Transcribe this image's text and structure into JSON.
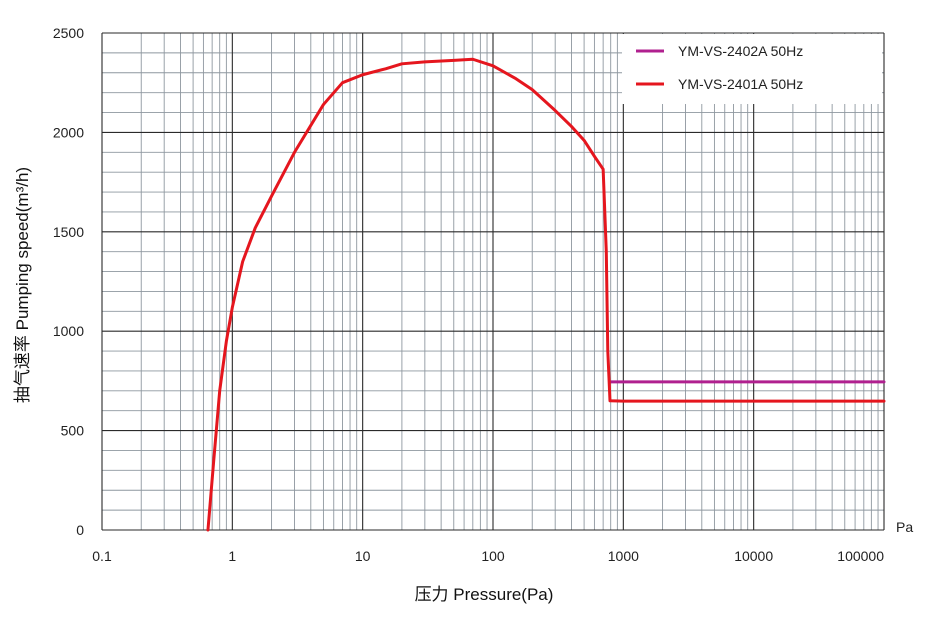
{
  "chart_data": {
    "type": "line",
    "xscale": "log",
    "xlim": [
      0.1,
      100000
    ],
    "ylim": [
      0,
      2500
    ],
    "grid": true,
    "xlabel": "压力 Pressure(Pa)",
    "ylabel": "抽气速率 Pumping speed(m³/h)",
    "x_unit": "Pa",
    "x_tick_labels": [
      "0.1",
      "1",
      "10",
      "100",
      "1000",
      "10000",
      "100000"
    ],
    "x_ticks": [
      0.1,
      1,
      10,
      100,
      1000,
      10000,
      100000
    ],
    "y_tick_labels": [
      "0",
      "500",
      "1000",
      "1500",
      "2000",
      "2500"
    ],
    "y_ticks": [
      0,
      500,
      1000,
      1500,
      2000,
      2500
    ],
    "legend_position": "top-right",
    "series": [
      {
        "name": "YM-VS-2402A 50Hz",
        "color": "#b0208f",
        "points": [
          [
            800,
            745
          ],
          [
            100000,
            745
          ]
        ]
      },
      {
        "name": "YM-VS-2401A 50Hz",
        "color": "#e5161e",
        "points": [
          [
            0.65,
            0
          ],
          [
            0.72,
            350
          ],
          [
            0.8,
            700
          ],
          [
            0.9,
            950
          ],
          [
            1.0,
            1120
          ],
          [
            1.2,
            1350
          ],
          [
            1.5,
            1520
          ],
          [
            2,
            1680
          ],
          [
            3,
            1900
          ],
          [
            5,
            2140
          ],
          [
            7,
            2250
          ],
          [
            10,
            2290
          ],
          [
            15,
            2320
          ],
          [
            20,
            2345
          ],
          [
            30,
            2355
          ],
          [
            50,
            2362
          ],
          [
            70,
            2368
          ],
          [
            100,
            2335
          ],
          [
            150,
            2270
          ],
          [
            200,
            2215
          ],
          [
            300,
            2110
          ],
          [
            400,
            2030
          ],
          [
            500,
            1960
          ],
          [
            600,
            1880
          ],
          [
            700,
            1815
          ],
          [
            740,
            1400
          ],
          [
            760,
            900
          ],
          [
            790,
            650
          ],
          [
            1000,
            648
          ],
          [
            100000,
            648
          ]
        ]
      }
    ]
  }
}
